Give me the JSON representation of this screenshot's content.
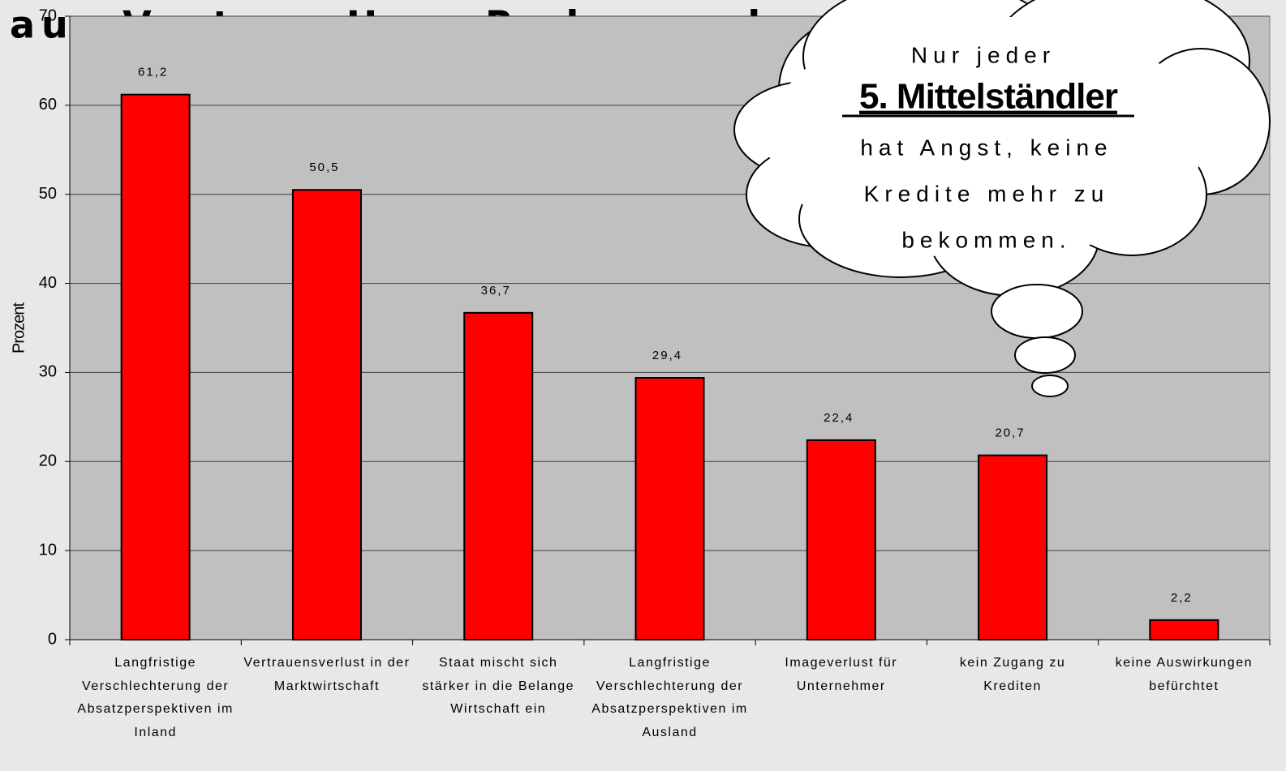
{
  "chart_data": {
    "type": "bar",
    "title": "aus Vertrag Herr Radermacher",
    "y_label": "Prozent",
    "categories": [
      "Langfristige Verschlechterung der Absatzperspektiven im Inland",
      "Vertrauensverlust in der Marktwirtschaft",
      "Staat mischt sich stärker in die Belange Wirtschaft ein",
      "Langfristige Verschlechterung der Absatzperspektiven im Ausland",
      "Imageverlust für Unternehmer",
      "kein Zugang zu Krediten",
      "keine Auswirkungen befürchtet"
    ],
    "values": [
      61.2,
      50.5,
      36.7,
      29.4,
      22.4,
      20.7,
      2.2
    ],
    "value_labels": [
      "61,2",
      "50,5",
      "36,7",
      "29,4",
      "22,4",
      "20,7",
      "2,2"
    ],
    "color": "#ff0000",
    "ylim": [
      0,
      70
    ],
    "yticks": [
      0,
      10,
      20,
      30,
      40,
      50,
      60,
      70
    ],
    "grid": true,
    "annotation": [
      "Nur jeder",
      "5. Mittelständler",
      "hat Angst, keine",
      "Kredite mehr zu",
      "bekommen."
    ]
  }
}
